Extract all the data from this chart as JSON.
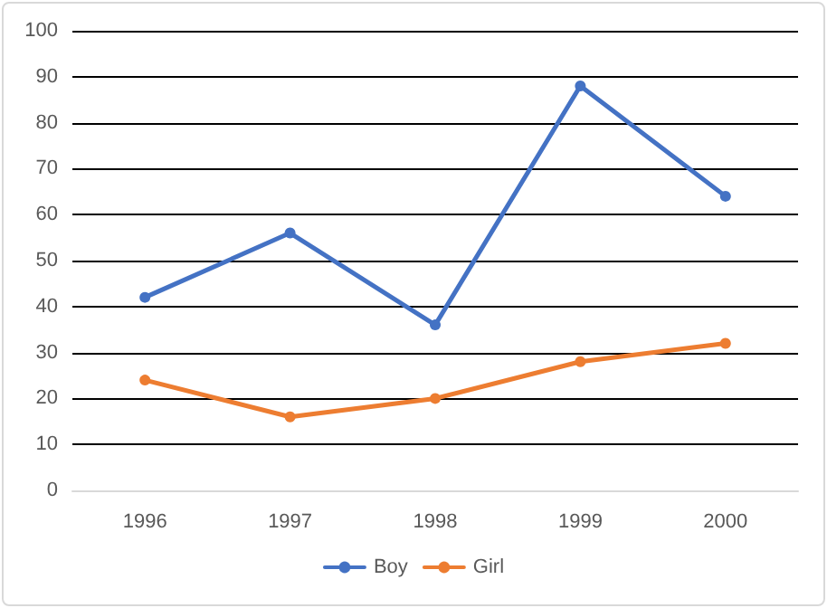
{
  "chart_data": {
    "type": "line",
    "categories": [
      "1996",
      "1997",
      "1998",
      "1999",
      "2000"
    ],
    "series": [
      {
        "name": "Boy",
        "color": "#4472c4",
        "values": [
          42,
          56,
          36,
          88,
          64
        ]
      },
      {
        "name": "Girl",
        "color": "#ed7d31",
        "values": [
          24,
          16,
          20,
          28,
          32
        ]
      }
    ],
    "ylim": [
      0,
      100
    ],
    "yticks": [
      0,
      10,
      20,
      30,
      40,
      50,
      60,
      70,
      80,
      90,
      100
    ],
    "grid": "y",
    "legend": "bottom",
    "marker": "circle",
    "line_style": "solid"
  }
}
